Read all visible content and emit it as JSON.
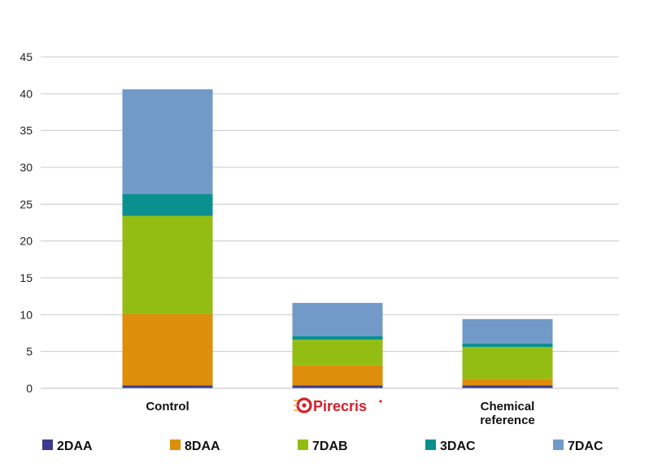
{
  "chart_data": {
    "type": "bar",
    "stacked": true,
    "categories": [
      "Control",
      "Pirecris",
      "Chemical reference"
    ],
    "category_label_lines": [
      [
        "Control"
      ],
      [
        "Pirecris"
      ],
      [
        "Chemical",
        "reference"
      ]
    ],
    "series": [
      {
        "name": "2DAA",
        "color": "#3b3a8f",
        "values": [
          0.4,
          0.4,
          0.4
        ]
      },
      {
        "name": "8DAA",
        "color": "#dd8e0b",
        "values": [
          9.7,
          2.7,
          0.9
        ]
      },
      {
        "name": "7DAB",
        "color": "#93bd12",
        "values": [
          13.3,
          3.5,
          4.3
        ]
      },
      {
        "name": "3DAC",
        "color": "#0b9090",
        "values": [
          3.0,
          0.5,
          0.5
        ]
      },
      {
        "name": "7DAC",
        "color": "#729ac8",
        "values": [
          14.2,
          4.5,
          3.3
        ]
      }
    ],
    "ylim": [
      0,
      45
    ],
    "yticks": [
      0,
      5,
      10,
      15,
      20,
      25,
      30,
      35,
      40,
      45
    ],
    "grid": true,
    "legend_position": "bottom",
    "title": "",
    "xlabel": "",
    "ylabel": ""
  }
}
